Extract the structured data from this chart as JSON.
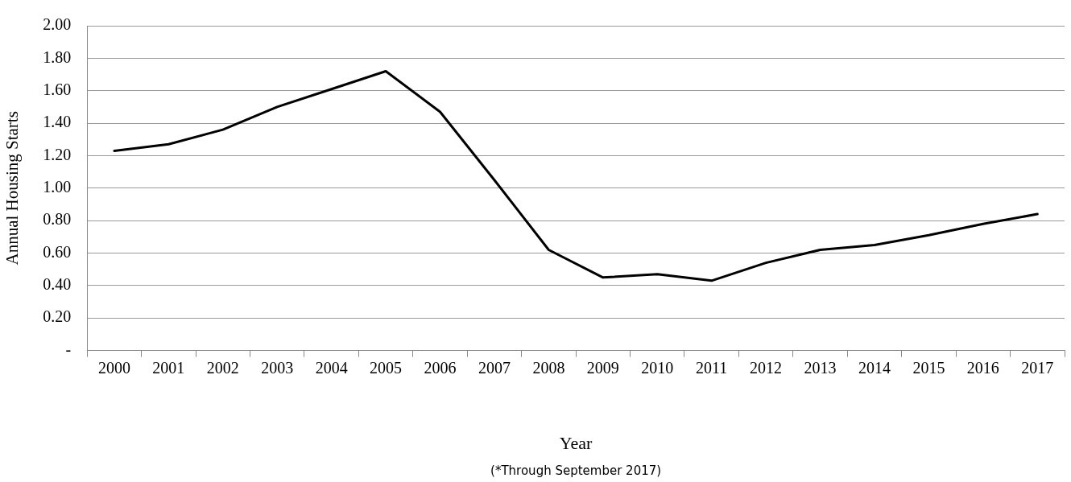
{
  "chart_data": {
    "type": "line",
    "xlabel": "Year",
    "ylabel": "Annual Housing Starts",
    "categories": [
      "2000",
      "2001",
      "2002",
      "2003",
      "2004",
      "2005",
      "2006",
      "2007",
      "2008",
      "2009",
      "2010",
      "2011",
      "2012",
      "2013",
      "2014",
      "2015",
      "2016",
      "2017"
    ],
    "series": [
      {
        "color": "#000000",
        "values": [
          1.23,
          1.27,
          1.36,
          1.5,
          1.61,
          1.72,
          1.47,
          1.05,
          0.62,
          0.45,
          0.47,
          0.43,
          0.54,
          0.62,
          0.65,
          0.71,
          0.78,
          0.84
        ]
      }
    ],
    "ylim": [
      0,
      2
    ],
    "yticks": [
      {
        "value": 0,
        "label": "-"
      },
      {
        "value": 0.2,
        "label": "0.20"
      },
      {
        "value": 0.4,
        "label": "0.40"
      },
      {
        "value": 0.6,
        "label": "0.60"
      },
      {
        "value": 0.8,
        "label": "0.80"
      },
      {
        "value": 1,
        "label": "1.00"
      },
      {
        "value": 1.2,
        "label": "1.20"
      },
      {
        "value": 1.4,
        "label": "1.40"
      },
      {
        "value": 1.6,
        "label": "1.60"
      },
      {
        "value": 1.8,
        "label": "1.80"
      },
      {
        "value": 2,
        "label": "2.00"
      }
    ],
    "grid": "y",
    "legend": false,
    "marker": "none",
    "line_style": "solid",
    "annotations": [
      "(*Through September 2017)"
    ]
  }
}
